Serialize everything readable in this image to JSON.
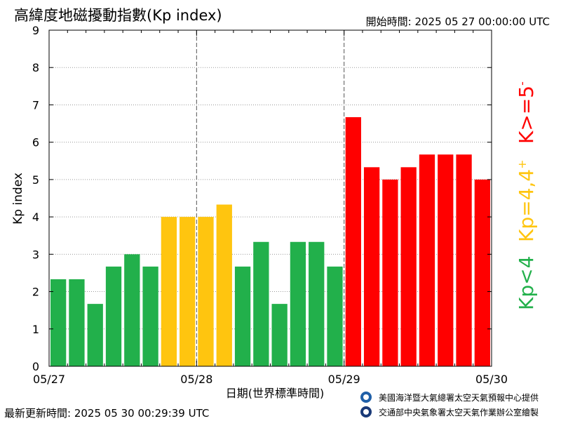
{
  "header": {
    "title": "高緯度地磁擾動指數(Kp index)",
    "start_time": "開始時間:  2025 05 27 00:00:00 UTC"
  },
  "footer": {
    "updated": "最新更新時間: 2025 05 30 00:29:39 UTC",
    "credit_noaa": "美國海洋暨大氣總署太空天氣預報中心提供",
    "credit_cwa": "交通部中央氣象署太空天氣作業辦公室繪製"
  },
  "legend": {
    "green_label": "Kp<4",
    "yellow_label": "Kp=4,4",
    "yellow_sup": "+",
    "red_label": "K>=5",
    "red_sup": "-"
  },
  "colors": {
    "green": "#22b04b",
    "yellow": "#ffc50f",
    "red": "#ff0000"
  },
  "chart_data": {
    "type": "bar",
    "ylabel": "Kp index",
    "xlabel": "日期(世界標準時間)",
    "ylim": [
      0,
      9
    ],
    "yticks": [
      "0",
      "1",
      "2",
      "3",
      "4",
      "5",
      "6",
      "7",
      "8",
      "9"
    ],
    "xticks": [
      "05/27",
      "05/28",
      "05/29",
      "05/30"
    ],
    "values": [
      2.33,
      2.33,
      1.67,
      2.67,
      3.0,
      2.67,
      4.0,
      4.0,
      4.0,
      4.33,
      2.67,
      3.33,
      1.67,
      3.33,
      3.33,
      2.67,
      6.67,
      5.33,
      5.0,
      5.33,
      5.67,
      5.67,
      5.67,
      5.0
    ],
    "levels": [
      "green",
      "green",
      "green",
      "green",
      "green",
      "green",
      "yellow",
      "yellow",
      "yellow",
      "yellow",
      "green",
      "green",
      "green",
      "green",
      "green",
      "green",
      "red",
      "red",
      "red",
      "red",
      "red",
      "red",
      "red",
      "red"
    ],
    "grid": true
  }
}
